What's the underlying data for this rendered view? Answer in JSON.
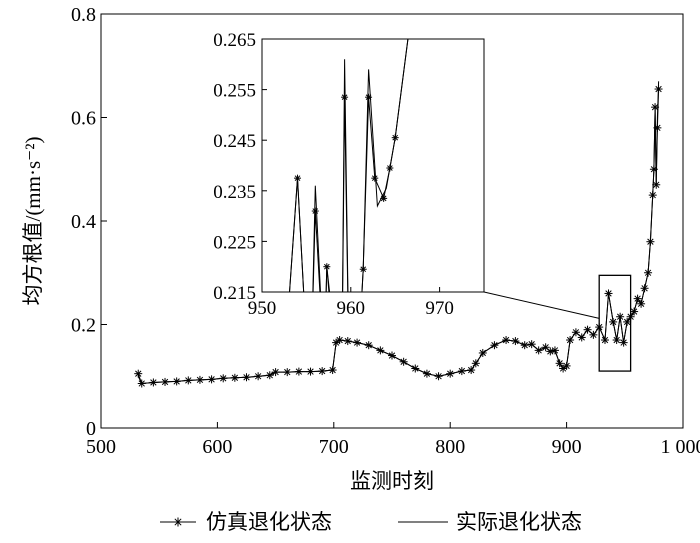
{
  "chart_data": {
    "type": "line",
    "xlabel": "监测时刻",
    "ylabel": "均方根值/(mm·s⁻²)",
    "xlim": [
      500,
      1000
    ],
    "ylim": [
      0,
      0.8
    ],
    "xticks": [
      500,
      600,
      700,
      800,
      900,
      1000
    ],
    "xtick_labels": [
      "500",
      "600",
      "700",
      "800",
      "900",
      "1 000"
    ],
    "yticks": [
      0,
      0.2,
      0.4,
      0.6,
      0.8
    ],
    "ytick_labels": [
      "0",
      "0.2",
      "0.4",
      "0.6",
      "0.8"
    ],
    "grid": false,
    "legend_position": "bottom",
    "series": [
      {
        "name": "仿真退化状态",
        "marker": "star",
        "x": [
          532,
          535,
          545,
          555,
          565,
          575,
          585,
          595,
          605,
          615,
          625,
          635,
          645,
          650,
          660,
          670,
          680,
          690,
          699,
          702,
          705,
          712,
          720,
          730,
          740,
          750,
          760,
          770,
          780,
          790,
          800,
          810,
          818,
          822,
          828,
          838,
          848,
          856,
          864,
          870,
          876,
          882,
          886,
          890,
          894,
          897,
          900,
          903,
          908,
          913,
          918,
          923,
          928,
          933,
          936,
          940,
          943,
          946,
          949,
          952,
          955,
          958,
          961,
          964,
          967,
          970,
          972,
          974,
          975,
          976,
          977,
          978,
          979
        ],
        "y": [
          0.105,
          0.086,
          0.088,
          0.089,
          0.09,
          0.092,
          0.093,
          0.094,
          0.096,
          0.097,
          0.098,
          0.1,
          0.102,
          0.108,
          0.108,
          0.109,
          0.109,
          0.11,
          0.112,
          0.165,
          0.17,
          0.168,
          0.165,
          0.16,
          0.15,
          0.14,
          0.128,
          0.115,
          0.105,
          0.1,
          0.105,
          0.11,
          0.112,
          0.125,
          0.145,
          0.16,
          0.17,
          0.168,
          0.16,
          0.162,
          0.15,
          0.156,
          0.148,
          0.15,
          0.125,
          0.115,
          0.12,
          0.17,
          0.185,
          0.175,
          0.19,
          0.18,
          0.195,
          0.17,
          0.26,
          0.205,
          0.17,
          0.215,
          0.165,
          0.205,
          0.215,
          0.225,
          0.25,
          0.24,
          0.27,
          0.3,
          0.36,
          0.45,
          0.5,
          0.62,
          0.47,
          0.58,
          0.655
        ]
      },
      {
        "name": "实际退化状态",
        "marker": "none",
        "x": [
          532,
          535,
          545,
          555,
          565,
          575,
          585,
          595,
          605,
          615,
          625,
          635,
          645,
          650,
          660,
          670,
          680,
          690,
          699,
          702,
          705,
          712,
          720,
          730,
          740,
          750,
          760,
          770,
          780,
          790,
          800,
          810,
          818,
          822,
          828,
          838,
          848,
          856,
          864,
          870,
          876,
          882,
          886,
          890,
          894,
          897,
          900,
          903,
          908,
          913,
          918,
          923,
          928,
          933,
          936,
          940,
          943,
          946,
          949,
          952,
          955,
          958,
          961,
          964,
          967,
          970,
          972,
          974,
          975,
          976,
          977,
          978,
          979
        ],
        "y": [
          0.1,
          0.086,
          0.088,
          0.089,
          0.09,
          0.092,
          0.093,
          0.094,
          0.096,
          0.097,
          0.098,
          0.1,
          0.102,
          0.108,
          0.108,
          0.109,
          0.109,
          0.11,
          0.112,
          0.165,
          0.17,
          0.168,
          0.165,
          0.16,
          0.15,
          0.14,
          0.128,
          0.115,
          0.105,
          0.1,
          0.105,
          0.11,
          0.112,
          0.125,
          0.145,
          0.16,
          0.17,
          0.168,
          0.16,
          0.162,
          0.15,
          0.156,
          0.148,
          0.15,
          0.125,
          0.115,
          0.12,
          0.17,
          0.185,
          0.175,
          0.19,
          0.18,
          0.195,
          0.17,
          0.26,
          0.205,
          0.17,
          0.215,
          0.165,
          0.205,
          0.215,
          0.225,
          0.25,
          0.24,
          0.27,
          0.3,
          0.36,
          0.45,
          0.5,
          0.62,
          0.47,
          0.6,
          0.67
        ]
      }
    ],
    "zoom_box": {
      "xlim": [
        928,
        955
      ],
      "ylim": [
        0.11,
        0.295
      ]
    },
    "inset": {
      "xlim": [
        950,
        975
      ],
      "ylim": [
        0.215,
        0.265
      ],
      "xticks": [
        950,
        960,
        970
      ],
      "xtick_labels": [
        "950",
        "960",
        "970"
      ],
      "yticks": [
        0.215,
        0.225,
        0.235,
        0.245,
        0.255,
        0.265
      ],
      "ytick_labels": [
        "0.215",
        "0.225",
        "0.235",
        "0.245",
        "0.255",
        "0.265"
      ],
      "series": [
        {
          "name": "仿真退化状态",
          "marker": "star",
          "x": [
            952.5,
            954,
            955,
            955.6,
            956,
            957,
            957.3,
            957.7,
            958.5,
            959,
            959.3,
            959.8,
            960.8,
            961.4,
            962,
            962.7,
            963.7,
            964.4,
            965,
            966.8
          ],
          "y": [
            0.2,
            0.2375,
            0.205,
            0.205,
            0.231,
            0.2,
            0.22,
            0.2135,
            0.2,
            0.2,
            0.2535,
            0.2,
            0.2,
            0.2195,
            0.2535,
            0.2375,
            0.2335,
            0.2395,
            0.2455,
            0.27
          ]
        },
        {
          "name": "实际退化状态",
          "marker": "none",
          "x": [
            952.5,
            954,
            955,
            955.6,
            956,
            957,
            957.3,
            957.7,
            958.5,
            959,
            959.3,
            959.8,
            960.8,
            961.4,
            962,
            963,
            964,
            965,
            966.8
          ],
          "y": [
            0.2,
            0.2375,
            0.205,
            0.205,
            0.236,
            0.2,
            0.22,
            0.2115,
            0.2,
            0.2,
            0.261,
            0.2,
            0.2,
            0.2195,
            0.259,
            0.232,
            0.2355,
            0.2455,
            0.27
          ]
        }
      ]
    }
  }
}
